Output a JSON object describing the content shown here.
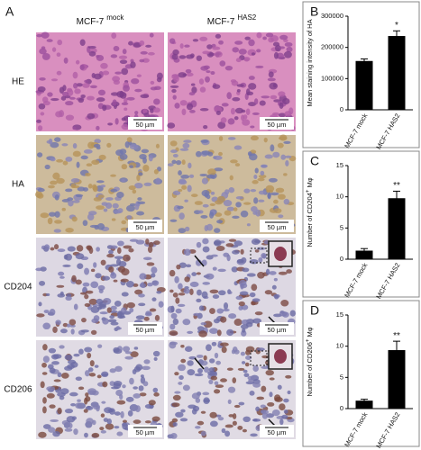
{
  "panel_a": {
    "label": "A",
    "columns": [
      {
        "base": "MCF-7",
        "sup": "mock"
      },
      {
        "base": "MCF-7",
        "sup": "HAS2"
      }
    ],
    "rows": [
      "HE",
      "HA",
      "CD204",
      "CD206"
    ],
    "scale_bar": "50 µm"
  },
  "chart_data": [
    {
      "type": "bar",
      "panel": "B",
      "ylabel": "Mean staining intensity of HA",
      "categories": [
        "MCF-7 mock",
        "MCF-7 HAS2"
      ],
      "values": [
        155000,
        235000
      ],
      "errors": [
        8000,
        18000
      ],
      "significance_labels": [
        null,
        "*"
      ],
      "color": "#000000",
      "ylim": [
        0,
        300000
      ],
      "yticks": [
        0,
        100000,
        200000,
        300000
      ]
    },
    {
      "type": "bar",
      "panel": "C",
      "ylabel": {
        "main": "Number of CD204",
        "sup": "+",
        "tail": " Mφ"
      },
      "categories": [
        "MCF-7 mock",
        "MCF-7 HAS2"
      ],
      "values": [
        1.3,
        9.7
      ],
      "errors": [
        0.4,
        1.2
      ],
      "significance_labels": [
        null,
        "**"
      ],
      "color": "#000000",
      "ylim": [
        0,
        15
      ],
      "yticks": [
        0,
        5,
        10,
        15
      ]
    },
    {
      "type": "bar",
      "panel": "D",
      "ylabel": {
        "main": "Number of CD206",
        "sup": "+",
        "tail": " Mφ"
      },
      "categories": [
        "MCF-7 mock",
        "MCF-7 HAS2"
      ],
      "values": [
        1.2,
        9.3
      ],
      "errors": [
        0.3,
        1.5
      ],
      "significance_labels": [
        null,
        "**"
      ],
      "color": "#000000",
      "ylim": [
        0,
        15
      ],
      "yticks": [
        0,
        5,
        10,
        15
      ]
    }
  ]
}
